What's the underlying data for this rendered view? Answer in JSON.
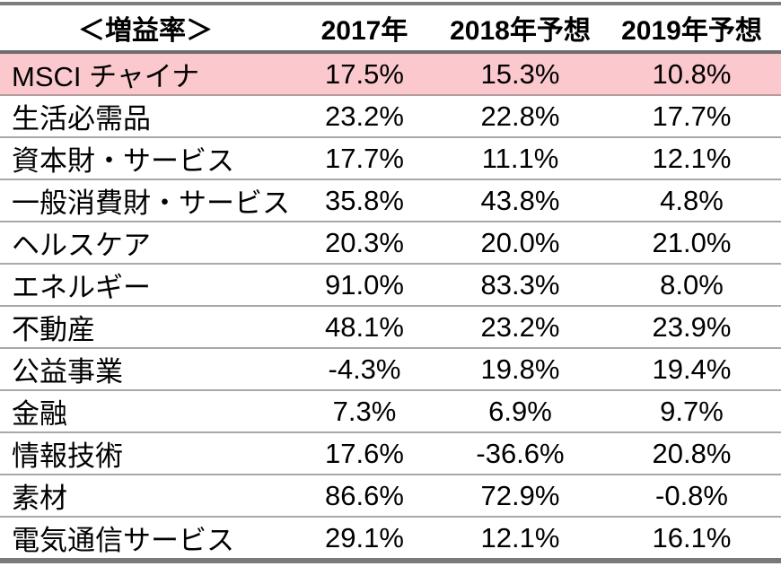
{
  "chart_data": {
    "type": "table",
    "title": "＜増益率＞",
    "columns": [
      "2017年",
      "2018年予想",
      "2019年予想"
    ],
    "rows": [
      {
        "label": "MSCI チャイナ",
        "values": [
          "17.5%",
          "15.3%",
          "10.8%"
        ],
        "highlight": true
      },
      {
        "label": "生活必需品",
        "values": [
          "23.2%",
          "22.8%",
          "17.7%"
        ],
        "highlight": false
      },
      {
        "label": "資本財・サービス",
        "values": [
          "17.7%",
          "11.1%",
          "12.1%"
        ],
        "highlight": false
      },
      {
        "label": "一般消費財・サービス",
        "values": [
          "35.8%",
          "43.8%",
          "4.8%"
        ],
        "highlight": false
      },
      {
        "label": "ヘルスケア",
        "values": [
          "20.3%",
          "20.0%",
          "21.0%"
        ],
        "highlight": false
      },
      {
        "label": "エネルギー",
        "values": [
          "91.0%",
          "83.3%",
          "8.0%"
        ],
        "highlight": false
      },
      {
        "label": "不動産",
        "values": [
          "48.1%",
          "23.2%",
          "23.9%"
        ],
        "highlight": false
      },
      {
        "label": "公益事業",
        "values": [
          "-4.3%",
          "19.8%",
          "19.4%"
        ],
        "highlight": false
      },
      {
        "label": "金融",
        "values": [
          "7.3%",
          "6.9%",
          "9.7%"
        ],
        "highlight": false
      },
      {
        "label": "情報技術",
        "values": [
          "17.6%",
          "-36.6%",
          "20.8%"
        ],
        "highlight": false
      },
      {
        "label": "素材",
        "values": [
          "86.6%",
          "72.9%",
          "-0.8%"
        ],
        "highlight": false
      },
      {
        "label": "電気通信サービス",
        "values": [
          "29.1%",
          "12.1%",
          "16.1%"
        ],
        "highlight": false
      }
    ],
    "layout": {
      "legend": "none",
      "grid": "horizontal-separators",
      "highlight_row_color": "#FBC8CD",
      "outer_border_color": "#7a7a7a",
      "separator_color": "#a8a8a8"
    }
  }
}
